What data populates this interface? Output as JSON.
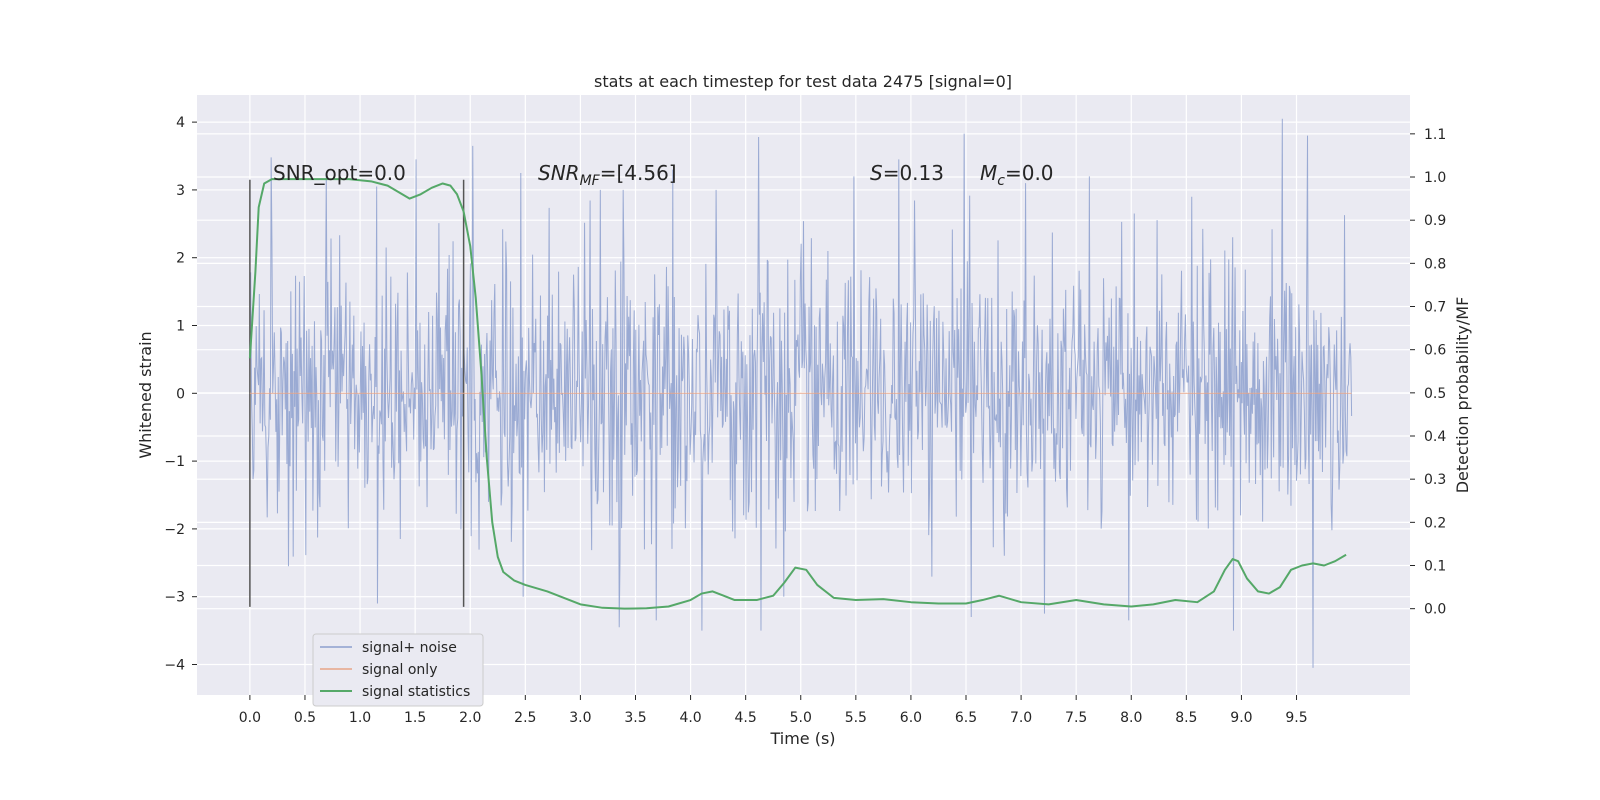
{
  "chart_data": {
    "type": "line",
    "title": "stats at each timestep for test data 2475 [signal=0]",
    "xlabel": "Time (s)",
    "ylabel": "Whitened strain",
    "y2label": "Detection probability/MF",
    "xlim": [
      -0.48,
      10.53
    ],
    "ylim": [
      -4.45,
      4.4
    ],
    "y2lim": [
      -0.2,
      1.19
    ],
    "x_ticks": [
      "0.0",
      "0.5",
      "1.0",
      "1.5",
      "2.0",
      "2.5",
      "3.0",
      "3.5",
      "4.0",
      "4.5",
      "5.0",
      "5.5",
      "6.0",
      "6.5",
      "7.0",
      "7.5",
      "8.0",
      "8.5",
      "9.0",
      "9.5"
    ],
    "x_tick_values": [
      0,
      0.5,
      1,
      1.5,
      2,
      2.5,
      3,
      3.5,
      4,
      4.5,
      5,
      5.5,
      6,
      6.5,
      7,
      7.5,
      8,
      8.5,
      9,
      9.5
    ],
    "y_ticks": [
      "−4",
      "−3",
      "−2",
      "−1",
      "0",
      "1",
      "2",
      "3",
      "4"
    ],
    "y_tick_values": [
      -4,
      -3,
      -2,
      -1,
      0,
      1,
      2,
      3,
      4
    ],
    "y2_ticks": [
      "0.0",
      "0.1",
      "0.2",
      "0.3",
      "0.4",
      "0.5",
      "0.6",
      "0.7",
      "0.8",
      "0.9",
      "1.0",
      "1.1"
    ],
    "y2_tick_values": [
      0,
      0.1,
      0.2,
      0.3,
      0.4,
      0.5,
      0.6,
      0.7,
      0.8,
      0.9,
      1.0,
      1.1
    ],
    "grid": true,
    "legend_position": "lower-left",
    "annotations": {
      "snr_opt": "SNR_opt=0.0",
      "snr_mf_main": "SNR",
      "snr_mf_sub": "MF",
      "snr_mf_value": "=[4.56]",
      "s_sym": "S",
      "s_value": "=0.13",
      "mc_main": "M",
      "mc_sub": "c",
      "mc_value": "=0.0"
    },
    "vertical_markers": [
      {
        "x": 0.0,
        "ymin": -3.15,
        "ymax": 3.15
      },
      {
        "x": 1.94,
        "ymin": -3.15,
        "ymax": 3.15
      }
    ],
    "series": [
      {
        "name": "signal+ noise",
        "color": "#8c9fce",
        "x_range": [
          0,
          10
        ],
        "envelope_note": "",
        "peaks_up": [
          {
            "x": 0.19,
            "y": 3.48
          },
          {
            "x": 0.69,
            "y": 3.25
          },
          {
            "x": 1.15,
            "y": 3.05
          },
          {
            "x": 1.51,
            "y": 3.45
          },
          {
            "x": 2.02,
            "y": 3.65
          },
          {
            "x": 2.46,
            "y": 3.25
          },
          {
            "x": 3.18,
            "y": 3.0
          },
          {
            "x": 3.84,
            "y": 3.3
          },
          {
            "x": 4.62,
            "y": 3.78
          },
          {
            "x": 5.48,
            "y": 3.2
          },
          {
            "x": 5.89,
            "y": 3.45
          },
          {
            "x": 6.48,
            "y": 3.83
          },
          {
            "x": 7.04,
            "y": 3.1
          },
          {
            "x": 7.62,
            "y": 3.2
          },
          {
            "x": 8.55,
            "y": 2.9
          },
          {
            "x": 9.37,
            "y": 4.05
          },
          {
            "x": 9.6,
            "y": 3.8
          }
        ],
        "peaks_down": [
          {
            "x": 0.35,
            "y": -2.55
          },
          {
            "x": 1.16,
            "y": -3.1
          },
          {
            "x": 2.48,
            "y": -3.0
          },
          {
            "x": 3.35,
            "y": -3.45
          },
          {
            "x": 3.69,
            "y": -3.35
          },
          {
            "x": 4.1,
            "y": -3.5
          },
          {
            "x": 4.64,
            "y": -3.5
          },
          {
            "x": 6.55,
            "y": -3.3
          },
          {
            "x": 7.21,
            "y": -3.25
          },
          {
            "x": 7.98,
            "y": -3.35
          },
          {
            "x": 8.93,
            "y": -3.5
          },
          {
            "x": 9.65,
            "y": -4.05
          }
        ]
      },
      {
        "name": "signal only",
        "color": "#e7a487",
        "x": [
          0.0,
          10.0
        ],
        "y": [
          0.0,
          0.0
        ]
      },
      {
        "name": "signal statistics",
        "color": "#55a868",
        "axis": "y2",
        "x": [
          0.0,
          0.05,
          0.08,
          0.13,
          0.2,
          0.3,
          0.5,
          0.7,
          0.9,
          1.1,
          1.25,
          1.35,
          1.45,
          1.55,
          1.65,
          1.75,
          1.82,
          1.88,
          1.94,
          2.0,
          2.05,
          2.1,
          2.15,
          2.2,
          2.25,
          2.3,
          2.4,
          2.5,
          2.7,
          3.0,
          3.2,
          3.4,
          3.6,
          3.8,
          4.0,
          4.1,
          4.2,
          4.3,
          4.4,
          4.6,
          4.75,
          4.85,
          4.95,
          5.05,
          5.15,
          5.3,
          5.5,
          5.75,
          6.0,
          6.25,
          6.5,
          6.65,
          6.8,
          7.0,
          7.25,
          7.5,
          7.75,
          8.0,
          8.2,
          8.4,
          8.6,
          8.75,
          8.85,
          8.92,
          8.97,
          9.05,
          9.15,
          9.25,
          9.35,
          9.45,
          9.55,
          9.65,
          9.75,
          9.85,
          9.95
        ],
        "y": [
          0.58,
          0.78,
          0.93,
          0.985,
          0.995,
          0.995,
          0.995,
          0.995,
          0.995,
          0.99,
          0.98,
          0.965,
          0.95,
          0.96,
          0.975,
          0.985,
          0.98,
          0.96,
          0.92,
          0.84,
          0.72,
          0.55,
          0.35,
          0.2,
          0.12,
          0.085,
          0.065,
          0.055,
          0.04,
          0.01,
          0.002,
          0.0,
          0.001,
          0.005,
          0.02,
          0.035,
          0.04,
          0.03,
          0.02,
          0.02,
          0.03,
          0.06,
          0.095,
          0.09,
          0.055,
          0.025,
          0.02,
          0.022,
          0.015,
          0.012,
          0.012,
          0.02,
          0.03,
          0.015,
          0.01,
          0.02,
          0.01,
          0.005,
          0.01,
          0.02,
          0.015,
          0.04,
          0.09,
          0.115,
          0.11,
          0.07,
          0.04,
          0.035,
          0.05,
          0.09,
          0.1,
          0.105,
          0.1,
          0.11,
          0.125
        ]
      }
    ]
  }
}
